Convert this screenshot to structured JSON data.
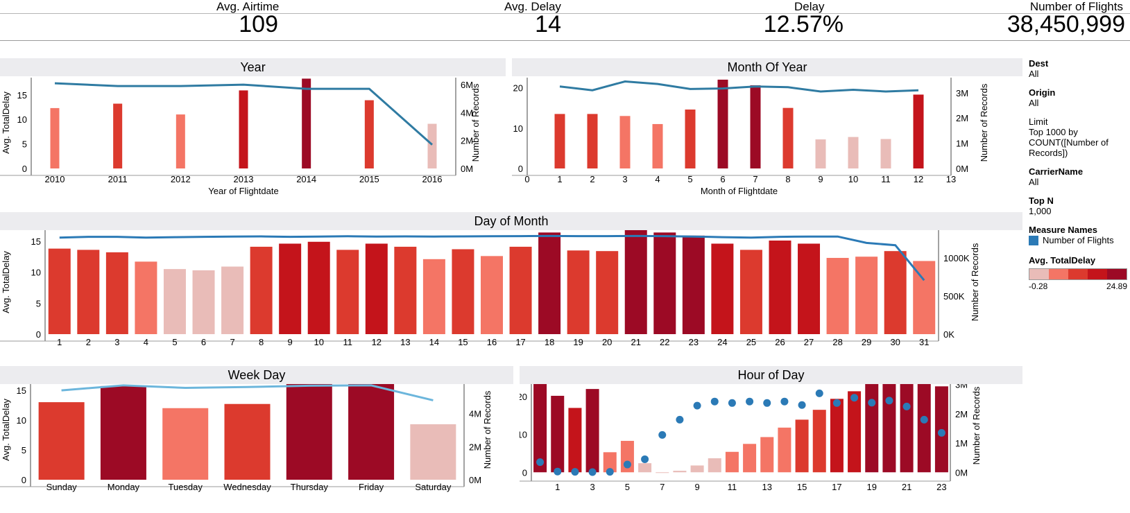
{
  "kpis": [
    {
      "label": "Avg. Airtime",
      "value": "109"
    },
    {
      "label": "Avg. Delay",
      "value": "14"
    },
    {
      "label": "Delay",
      "value": "12.57%"
    },
    {
      "label": "Number of Flights",
      "value": "38,450,999"
    }
  ],
  "filters": [
    {
      "title": "Dest",
      "value": "All"
    },
    {
      "title": "Origin",
      "value": "All"
    },
    {
      "title": "Limit",
      "value": "Top 1000 by COUNT([Number of Records])",
      "lines": [
        "Top 1000 by",
        "COUNT([Number of",
        "Records])"
      ]
    },
    {
      "title": "CarrierName",
      "value": "All"
    },
    {
      "title": "Top N",
      "value": "1,000"
    }
  ],
  "measure_names": {
    "title": "Measure Names",
    "item": "Number of Flights",
    "color": "#2b7ab6"
  },
  "color_legend": {
    "title": "Avg. TotalDelay",
    "min": "-0.28",
    "max": "24.89",
    "colors": [
      "#e9bcb8",
      "#f47565",
      "#dc3a2e",
      "#c4141b",
      "#9c0a25"
    ]
  },
  "chart_data": [
    {
      "type": "bar",
      "title": "Year",
      "xlabel": "Year of Flightdate",
      "ylabel": "Avg. TotalDelay",
      "y2label": "Number of Records",
      "categories": [
        "2010",
        "2011",
        "2012",
        "2013",
        "2014",
        "2015",
        "2016"
      ],
      "values": [
        12.3,
        13.2,
        11.0,
        15.9,
        18.3,
        13.9,
        9.1
      ],
      "colors": [
        "#f47565",
        "#dc3a2e",
        "#f47565",
        "#c4141b",
        "#9c0a25",
        "#dc3a2e",
        "#e9bcb8"
      ],
      "ylim": [
        0,
        18.5
      ],
      "yticks": [
        "0",
        "5",
        "10",
        "15"
      ],
      "y2lim": [
        0,
        6.5
      ],
      "y2ticks": [
        "0M",
        "2M",
        "4M",
        "6M"
      ],
      "series": [
        {
          "name": "Number of Flights",
          "type": "line",
          "unit": "M",
          "values": [
            6.1,
            5.9,
            5.9,
            6.0,
            5.7,
            5.7,
            1.7
          ]
        }
      ]
    },
    {
      "type": "bar",
      "title": "Month Of Year",
      "xlabel": "Month of Flightdate",
      "ylabel": "Avg. TotalDelay",
      "y2label": "Number of Records",
      "categories": [
        "1",
        "2",
        "3",
        "4",
        "5",
        "6",
        "7",
        "8",
        "9",
        "10",
        "11",
        "12"
      ],
      "xticks": [
        "0",
        "1",
        "2",
        "3",
        "4",
        "5",
        "6",
        "7",
        "8",
        "9",
        "10",
        "11",
        "12",
        "13"
      ],
      "values": [
        13.5,
        13.5,
        13.0,
        11.0,
        14.6,
        22.0,
        20.6,
        15.0,
        7.2,
        7.8,
        7.3,
        18.3
      ],
      "colors": [
        "#dc3a2e",
        "#dc3a2e",
        "#f47565",
        "#f47565",
        "#dc3a2e",
        "#9c0a25",
        "#9c0a25",
        "#dc3a2e",
        "#e9bcb8",
        "#e9bcb8",
        "#e9bcb8",
        "#c4141b"
      ],
      "ylim": [
        0,
        22.5
      ],
      "yticks": [
        "0",
        "10",
        "20"
      ],
      "y2lim": [
        0,
        3.6
      ],
      "y2ticks": [
        "0M",
        "1M",
        "2M",
        "3M"
      ],
      "series": [
        {
          "name": "Number of Flights",
          "type": "line",
          "unit": "M",
          "values": [
            3.25,
            3.1,
            3.45,
            3.35,
            3.15,
            3.17,
            3.25,
            3.22,
            3.05,
            3.12,
            3.05,
            3.1
          ]
        }
      ]
    },
    {
      "type": "bar",
      "title": "Day of Month",
      "ylabel": "Avg. TotalDelay",
      "y2label": "Number of Records",
      "categories": [
        "1",
        "2",
        "3",
        "4",
        "5",
        "6",
        "7",
        "8",
        "9",
        "10",
        "11",
        "12",
        "13",
        "14",
        "15",
        "16",
        "17",
        "18",
        "19",
        "20",
        "21",
        "22",
        "23",
        "24",
        "25",
        "26",
        "27",
        "28",
        "29",
        "30",
        "31"
      ],
      "values": [
        13.8,
        13.6,
        13.2,
        11.7,
        10.5,
        10.3,
        10.9,
        14.1,
        14.6,
        14.9,
        13.6,
        14.6,
        14.1,
        12.1,
        13.7,
        12.6,
        14.1,
        16.4,
        13.5,
        13.4,
        16.8,
        16.4,
        15.9,
        14.6,
        13.6,
        15.1,
        14.6,
        12.3,
        12.5,
        13.4,
        11.8
      ],
      "colors": [
        "#dc3a2e",
        "#dc3a2e",
        "#dc3a2e",
        "#f47565",
        "#e9bcb8",
        "#e9bcb8",
        "#e9bcb8",
        "#dc3a2e",
        "#c4141b",
        "#c4141b",
        "#dc3a2e",
        "#c4141b",
        "#dc3a2e",
        "#f47565",
        "#dc3a2e",
        "#f47565",
        "#dc3a2e",
        "#9c0a25",
        "#dc3a2e",
        "#dc3a2e",
        "#9c0a25",
        "#9c0a25",
        "#9c0a25",
        "#c4141b",
        "#dc3a2e",
        "#c4141b",
        "#c4141b",
        "#f47565",
        "#f47565",
        "#dc3a2e",
        "#f47565"
      ],
      "ylim": [
        0,
        17
      ],
      "yticks": [
        "0",
        "5",
        "10",
        "15"
      ],
      "y2lim": [
        0,
        1380
      ],
      "y2ticks": [
        "0K",
        "500K",
        "1000K"
      ],
      "series": [
        {
          "name": "Number of Flights",
          "type": "line",
          "unit": "K",
          "values": [
            1265,
            1275,
            1275,
            1265,
            1270,
            1275,
            1278,
            1280,
            1275,
            1278,
            1282,
            1278,
            1280,
            1278,
            1280,
            1282,
            1284,
            1286,
            1284,
            1284,
            1286,
            1284,
            1278,
            1270,
            1265,
            1275,
            1278,
            1278,
            1195,
            1165,
            705
          ]
        }
      ]
    },
    {
      "type": "bar",
      "title": "Week Day",
      "ylabel": "Avg. TotalDelay",
      "y2label": "Number of Records",
      "categories": [
        "Sunday",
        "Monday",
        "Tuesday",
        "Wednesday",
        "Thursday",
        "Friday",
        "Saturday"
      ],
      "values": [
        13.0,
        15.7,
        12.0,
        12.7,
        16.3,
        16.3,
        9.3
      ],
      "colors": [
        "#dc3a2e",
        "#9c0a25",
        "#f47565",
        "#dc3a2e",
        "#9c0a25",
        "#9c0a25",
        "#e9bcb8"
      ],
      "ylim": [
        0,
        17.2
      ],
      "yticks": [
        "0",
        "5",
        "10",
        "15"
      ],
      "y2lim": [
        0,
        6.2
      ],
      "y2ticks": [
        "0M",
        "2M",
        "4M",
        "6M"
      ],
      "series": [
        {
          "name": "Number of Flights",
          "type": "line",
          "unit": "M",
          "values": [
            5.4,
            5.7,
            5.55,
            5.6,
            5.68,
            5.7,
            4.8
          ]
        }
      ]
    },
    {
      "type": "bar",
      "title": "Hour of Day",
      "ylabel": "Avg. TotalDelay",
      "y2label": "Number of Records",
      "categories": [
        "0",
        "1",
        "2",
        "3",
        "4",
        "5",
        "6",
        "7",
        "8",
        "9",
        "10",
        "11",
        "12",
        "13",
        "14",
        "15",
        "16",
        "17",
        "18",
        "19",
        "20",
        "21",
        "22",
        "23"
      ],
      "xticks": [
        "1",
        "3",
        "5",
        "7",
        "9",
        "11",
        "13",
        "15",
        "17",
        "19",
        "21",
        "23"
      ],
      "values": [
        24.5,
        20.2,
        17.0,
        22.0,
        5.3,
        8.3,
        2.4,
        -0.2,
        0.4,
        1.8,
        3.7,
        5.4,
        7.5,
        9.3,
        11.8,
        13.9,
        16.5,
        19.4,
        21.4,
        23.3,
        23.7,
        24.7,
        24.9,
        22.7
      ],
      "colors": [
        "#9c0a25",
        "#9c0a25",
        "#c4141b",
        "#9c0a25",
        "#f47565",
        "#f47565",
        "#e9bcb8",
        "#e9bcb8",
        "#e9bcb8",
        "#e9bcb8",
        "#e9bcb8",
        "#f47565",
        "#f47565",
        "#f47565",
        "#f47565",
        "#dc3a2e",
        "#dc3a2e",
        "#c4141b",
        "#c4141b",
        "#9c0a25",
        "#9c0a25",
        "#9c0a25",
        "#9c0a25",
        "#9c0a25"
      ],
      "ylim": [
        -0.5,
        25.5
      ],
      "yticks": [
        "0",
        "10",
        "20"
      ],
      "y2lim": [
        -0.06,
        3.3
      ],
      "y2ticks": [
        "0M",
        "1M",
        "2M",
        "3M"
      ],
      "series": [
        {
          "name": "Number of Flights",
          "type": "scatter",
          "unit": "M",
          "values": [
            0.35,
            0.03,
            0.02,
            0.01,
            0.02,
            0.27,
            0.45,
            1.28,
            1.8,
            2.28,
            2.42,
            2.37,
            2.42,
            2.37,
            2.42,
            2.3,
            2.7,
            2.37,
            2.55,
            2.38,
            2.45,
            2.25,
            1.8,
            1.35
          ]
        }
      ]
    }
  ]
}
